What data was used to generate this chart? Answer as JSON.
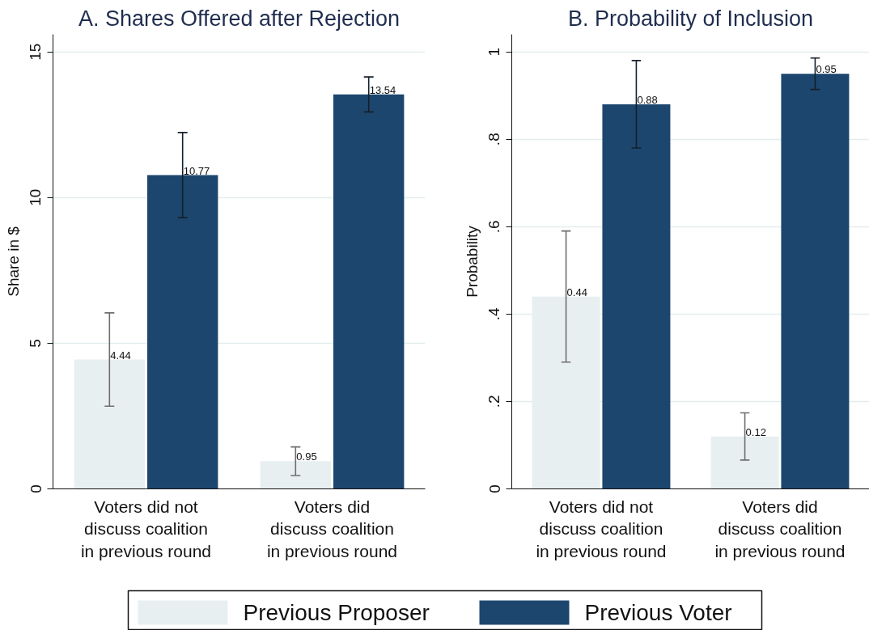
{
  "chart_data": [
    {
      "type": "bar",
      "title": "A. Shares Offered after Rejection",
      "ylabel": "Share in $",
      "categories": [
        "Voters did not\ndiscuss coalition\nin previous round",
        "Voters did\ndiscuss coalition\nin previous round"
      ],
      "series": [
        {
          "name": "Previous Proposer",
          "color": "#e8eff1",
          "values": [
            4.44,
            0.95
          ],
          "errors": [
            1.6,
            0.49
          ]
        },
        {
          "name": "Previous Voter",
          "color": "#1c466e",
          "values": [
            10.77,
            13.54
          ],
          "errors": [
            1.46,
            0.6
          ]
        }
      ],
      "ylim": [
        0,
        15.6
      ],
      "yticks": [
        0,
        5,
        10,
        15
      ],
      "grid": "y",
      "legend": "bottom",
      "data_labels": true
    },
    {
      "type": "bar",
      "title": "B. Probability of Inclusion",
      "ylabel": "Probability",
      "categories": [
        "Voters did not\ndiscuss coalition\nin previous round",
        "Voters did\ndiscuss coalition\nin previous round"
      ],
      "series": [
        {
          "color": "#e8eff1",
          "values": [
            0.44,
            0.12
          ],
          "errors": [
            0.15,
            0.054
          ]
        },
        {
          "color": "#1c466e",
          "values": [
            0.88,
            0.95
          ],
          "errors": [
            0.1,
            0.036
          ]
        }
      ],
      "ylim": [
        0,
        1.04
      ],
      "yticks": [
        0,
        {
          "value": 0.2,
          "label": ".2"
        },
        {
          "value": 0.4,
          "label": ".4"
        },
        {
          "value": 0.6,
          "label": ".6"
        },
        {
          "value": 0.8,
          "label": ".8"
        },
        1
      ],
      "grid": "y",
      "data_labels": true
    }
  ]
}
